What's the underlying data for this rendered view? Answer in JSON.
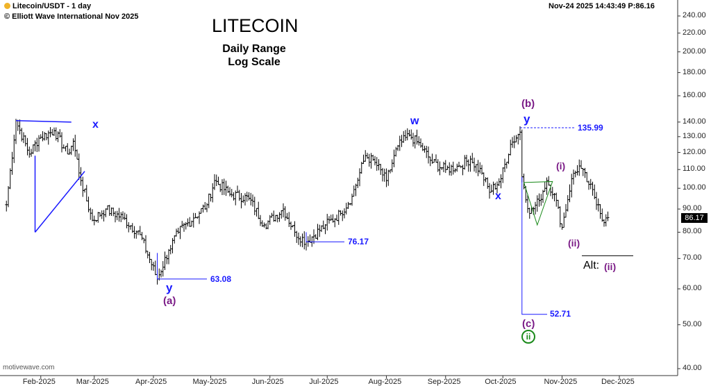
{
  "header": {
    "symbol": "Litecoin/USDT - 1 day",
    "copyright": "© Elliott Wave International Nov 2025",
    "timestamp": "Nov-24 2025  14:43:49  P:86.16",
    "watermark": "motivewave.com"
  },
  "chart_data": {
    "type": "ohlc",
    "title": "LITECOIN",
    "subtitle": [
      "Daily Range",
      "Log Scale"
    ],
    "y_scale": "log",
    "ylim": [
      40,
      240
    ],
    "y_ticks": [
      40,
      50,
      60,
      70,
      80,
      90,
      100,
      110,
      120,
      130,
      140,
      160,
      180,
      200,
      220,
      240
    ],
    "y_tick_labels": [
      "40.00",
      "50.00",
      "60.00",
      "70.00",
      "80.00",
      "90.00",
      "100.00",
      "110.00",
      "120.00",
      "130.00",
      "140.00",
      "160.00",
      "180.00",
      "200.00",
      "220.00",
      "240.00"
    ],
    "x_tick_labels": [
      "Feb-2025",
      "Mar-2025",
      "Apr-2025",
      "May-2025",
      "Jun-2025",
      "Jul-2025",
      "Aug-2025",
      "Sep-2025",
      "Oct-2025",
      "Nov-2025",
      "Dec-2025"
    ],
    "x_tick_days": [
      31,
      59,
      90,
      120,
      151,
      181,
      212,
      243,
      273,
      304,
      334
    ],
    "x_range_days": [
      10,
      342
    ],
    "last_price": "86.17",
    "key_points": [
      {
        "day": 13,
        "price": 92
      },
      {
        "day": 18,
        "price": 141
      },
      {
        "day": 25,
        "price": 119
      },
      {
        "day": 30,
        "price": 129
      },
      {
        "day": 38,
        "price": 134
      },
      {
        "day": 45,
        "price": 119
      },
      {
        "day": 48,
        "price": 127
      },
      {
        "day": 52,
        "price": 104
      },
      {
        "day": 58,
        "price": 85
      },
      {
        "day": 65,
        "price": 90
      },
      {
        "day": 74,
        "price": 86
      },
      {
        "day": 83,
        "price": 79
      },
      {
        "day": 92,
        "price": 63.08
      },
      {
        "day": 98,
        "price": 73
      },
      {
        "day": 103,
        "price": 80
      },
      {
        "day": 111,
        "price": 86
      },
      {
        "day": 118,
        "price": 92
      },
      {
        "day": 122,
        "price": 104
      },
      {
        "day": 130,
        "price": 97
      },
      {
        "day": 140,
        "price": 95
      },
      {
        "day": 148,
        "price": 83
      },
      {
        "day": 158,
        "price": 90
      },
      {
        "day": 164,
        "price": 80
      },
      {
        "day": 170,
        "price": 76.17
      },
      {
        "day": 180,
        "price": 83
      },
      {
        "day": 188,
        "price": 88
      },
      {
        "day": 194,
        "price": 96
      },
      {
        "day": 201,
        "price": 118
      },
      {
        "day": 206,
        "price": 114
      },
      {
        "day": 212,
        "price": 104
      },
      {
        "day": 218,
        "price": 124
      },
      {
        "day": 224,
        "price": 131
      },
      {
        "day": 230,
        "price": 124
      },
      {
        "day": 236,
        "price": 114
      },
      {
        "day": 243,
        "price": 110
      },
      {
        "day": 250,
        "price": 112
      },
      {
        "day": 256,
        "price": 116
      },
      {
        "day": 262,
        "price": 108
      },
      {
        "day": 266,
        "price": 98
      },
      {
        "day": 272,
        "price": 105
      },
      {
        "day": 277,
        "price": 125
      },
      {
        "day": 282,
        "price": 133
      },
      {
        "day": 283,
        "price": 106
      },
      {
        "day": 287,
        "price": 88
      },
      {
        "day": 292,
        "price": 94
      },
      {
        "day": 296,
        "price": 104
      },
      {
        "day": 300,
        "price": 97
      },
      {
        "day": 304,
        "price": 82
      },
      {
        "day": 309,
        "price": 105
      },
      {
        "day": 313,
        "price": 112
      },
      {
        "day": 318,
        "price": 102
      },
      {
        "day": 323,
        "price": 92
      },
      {
        "day": 326,
        "price": 84
      },
      {
        "day": 328,
        "price": 86.17
      }
    ],
    "price_levels": [
      {
        "label": "63.08",
        "price": 63.08
      },
      {
        "label": "76.17",
        "price": 76.17
      },
      {
        "label": "52.71",
        "price": 52.71
      },
      {
        "label": "135.99",
        "price": 135.99
      }
    ],
    "wave_labels": [
      {
        "text": "x",
        "color": "#1a1aff"
      },
      {
        "text": "y",
        "color": "#1a1aff"
      },
      {
        "text": "(a)",
        "color": "#7a1a86"
      },
      {
        "text": "w",
        "color": "#1a1aff"
      },
      {
        "text": "x",
        "color": "#1a1aff"
      },
      {
        "text": "(b)",
        "color": "#7a1a86"
      },
      {
        "text": "y",
        "color": "#1a1aff"
      },
      {
        "text": "(c)",
        "color": "#7a1a86"
      },
      {
        "text": "ii",
        "color": "#1a8a1a"
      },
      {
        "text": "(i)",
        "color": "#7a1a86"
      },
      {
        "text": "(ii)",
        "color": "#7a1a86"
      },
      {
        "text": "Alt:",
        "color": "#000000"
      },
      {
        "text": "(ii)",
        "color": "#7a1a86"
      }
    ]
  }
}
